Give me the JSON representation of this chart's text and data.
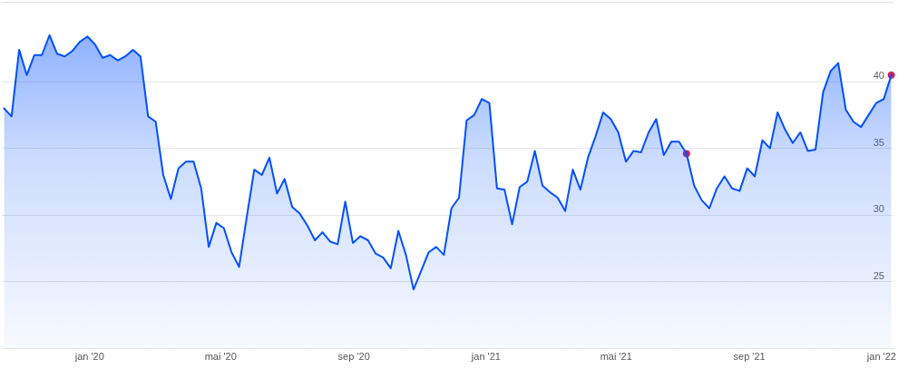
{
  "chart_data": {
    "type": "area",
    "x": [
      "2019-10-14",
      "2019-10-21",
      "2019-10-28",
      "2019-11-04",
      "2019-11-11",
      "2019-11-18",
      "2019-11-25",
      "2019-12-02",
      "2019-12-09",
      "2019-12-16",
      "2019-12-23",
      "2019-12-30",
      "2020-01-06",
      "2020-01-13",
      "2020-01-20",
      "2020-01-27",
      "2020-02-03",
      "2020-02-10",
      "2020-02-17",
      "2020-02-24",
      "2020-03-02",
      "2020-03-09",
      "2020-03-16",
      "2020-03-23",
      "2020-03-30",
      "2020-04-06",
      "2020-04-13",
      "2020-04-20",
      "2020-04-27",
      "2020-05-04",
      "2020-05-11",
      "2020-05-18",
      "2020-05-25",
      "2020-06-01",
      "2020-06-08",
      "2020-06-15",
      "2020-06-22",
      "2020-06-29",
      "2020-07-06",
      "2020-07-13",
      "2020-07-20",
      "2020-07-27",
      "2020-08-03",
      "2020-08-10",
      "2020-08-17",
      "2020-08-24",
      "2020-08-31",
      "2020-09-07",
      "2020-09-14",
      "2020-09-21",
      "2020-09-28",
      "2020-10-05",
      "2020-10-12",
      "2020-10-19",
      "2020-10-26",
      "2020-11-02",
      "2020-11-09",
      "2020-11-16",
      "2020-11-23",
      "2020-11-30",
      "2020-12-07",
      "2020-12-14",
      "2020-12-21",
      "2020-12-28",
      "2021-01-04",
      "2021-01-11",
      "2021-01-18",
      "2021-01-25",
      "2021-02-01",
      "2021-02-08",
      "2021-02-15",
      "2021-02-22",
      "2021-03-01",
      "2021-03-08",
      "2021-03-15",
      "2021-03-22",
      "2021-03-29",
      "2021-04-05",
      "2021-04-12",
      "2021-04-19",
      "2021-04-26",
      "2021-05-03",
      "2021-05-10",
      "2021-05-17",
      "2021-05-24",
      "2021-05-31",
      "2021-06-07",
      "2021-06-14",
      "2021-06-21",
      "2021-06-28",
      "2021-07-05",
      "2021-07-12",
      "2021-07-19",
      "2021-07-26",
      "2021-08-02",
      "2021-08-09",
      "2021-08-16",
      "2021-08-23",
      "2021-08-30",
      "2021-09-06",
      "2021-09-13",
      "2021-09-20",
      "2021-09-27",
      "2021-10-04",
      "2021-10-11",
      "2021-10-18",
      "2021-10-25",
      "2021-11-01",
      "2021-11-08",
      "2021-11-15",
      "2021-11-22",
      "2021-11-29",
      "2021-12-06",
      "2021-12-13",
      "2021-12-20",
      "2021-12-27",
      "2022-01-03",
      "2022-01-10"
    ],
    "series": [
      {
        "color": "#0050ff",
        "values": [
          38.0,
          37.4,
          42.4,
          40.5,
          42.0,
          42.0,
          43.5,
          42.1,
          41.9,
          42.3,
          43.0,
          43.4,
          42.8,
          41.8,
          42.0,
          41.6,
          41.9,
          42.4,
          41.9,
          37.4,
          37.0,
          33.0,
          31.2,
          33.5,
          34.0,
          34.0,
          32.0,
          27.6,
          29.4,
          29.0,
          27.2,
          26.1,
          29.8,
          33.4,
          33.0,
          34.3,
          31.6,
          32.7,
          30.6,
          30.1,
          29.2,
          28.1,
          28.7,
          28.0,
          27.8,
          31.0,
          27.9,
          28.4,
          28.1,
          27.1,
          26.8,
          26.0,
          28.8,
          27.0,
          24.4,
          25.8,
          27.2,
          27.6,
          27.0,
          30.5,
          31.3,
          37.1,
          37.5,
          38.7,
          38.4,
          32.0,
          31.9,
          29.3,
          32.1,
          32.5,
          34.8,
          32.2,
          31.7,
          31.3,
          30.3,
          33.4,
          31.9,
          34.3,
          35.9,
          37.7,
          37.2,
          36.2,
          34.0,
          34.8,
          34.7,
          36.2,
          37.2,
          34.5,
          35.5,
          35.5,
          34.6,
          32.2,
          31.1,
          30.5,
          32.0,
          32.9,
          32.0,
          31.8,
          33.5,
          32.9,
          35.6,
          35.0,
          37.7,
          36.4,
          35.4,
          36.2,
          34.8,
          34.9,
          39.2,
          40.8,
          41.4,
          37.9,
          37.0,
          36.6,
          37.5,
          38.4,
          38.7,
          40.5
        ]
      },
      {
        "type": "scatter",
        "color": "#cf2260",
        "marker": "circle",
        "x": [
          "2021-07-05",
          "2022-01-10"
        ],
        "values": [
          34.6,
          40.5
        ]
      }
    ],
    "xlim": [
      "2019-10-12",
      "2022-01-12"
    ],
    "xticks": [
      {
        "value": "2020-01-01",
        "label": "jan '20"
      },
      {
        "value": "2020-05-01",
        "label": "mai '20"
      },
      {
        "value": "2020-09-01",
        "label": "sep '20"
      },
      {
        "value": "2021-01-01",
        "label": "jan '21"
      },
      {
        "value": "2021-05-01",
        "label": "mai '21"
      },
      {
        "value": "2021-09-01",
        "label": "sep '21"
      },
      {
        "value": "2022-01-01",
        "label": "jan '22"
      }
    ],
    "ylim": [
      20,
      46
    ],
    "yticks": [
      25,
      30,
      35,
      40
    ],
    "grid": "y",
    "marker": "none"
  }
}
